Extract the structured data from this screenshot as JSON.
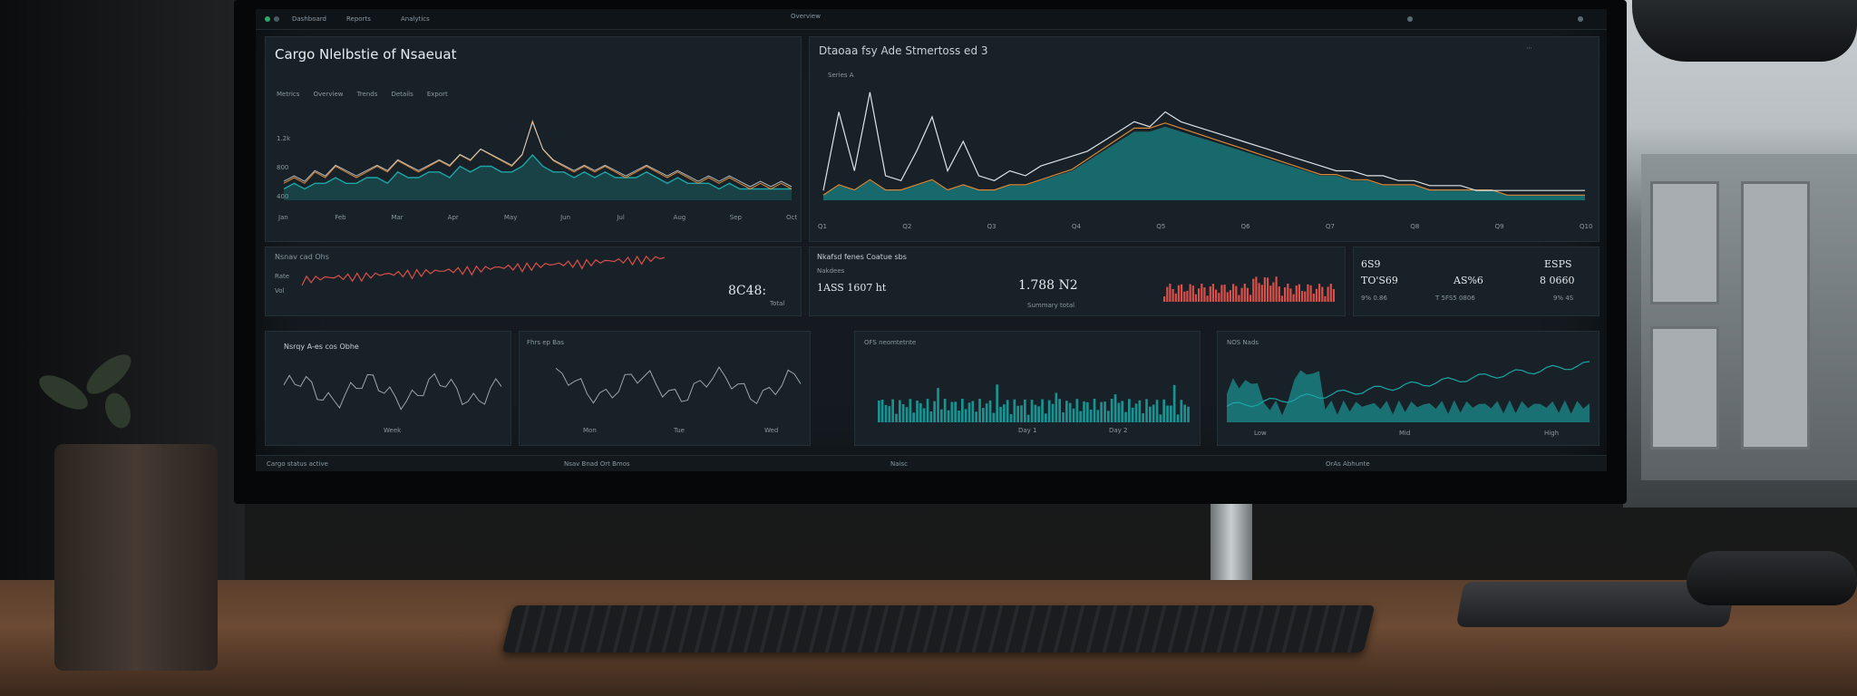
{
  "topbar": {
    "items": [
      "Dashboard",
      "Reports",
      "Analytics"
    ],
    "center": "Overview"
  },
  "panels": {
    "left_chart": {
      "title": "Cargo Nlelbstie of Nsaeuat",
      "tabs": [
        "Metrics",
        "Overview",
        "Trends",
        "Details",
        "Export"
      ],
      "axis": [
        "1.2k",
        "800",
        "400"
      ],
      "xlabels": [
        "Jan",
        "Feb",
        "Mar",
        "Apr",
        "May",
        "Jun",
        "Jul",
        "Aug",
        "Sep",
        "Oct"
      ]
    },
    "right_chart": {
      "title": "Dtaoaa fsy Ade Stmertoss ed 3",
      "sub": "Series A",
      "xlabels": [
        "Q1",
        "Q2",
        "Q3",
        "Q4",
        "Q5",
        "Q6",
        "Q7",
        "Q8",
        "Q9",
        "Q10"
      ]
    },
    "mid_left": {
      "title": "Nsnav cad Ohs",
      "axis": [
        "Rate",
        "Vol"
      ],
      "value": "8C48:",
      "sub": "Total"
    },
    "mid_center": {
      "title": "Nkafsd fenes Coatue sbs",
      "sub": "Nakdees",
      "value_left": "1ASS 1607 ht",
      "value_right": "1.788  N2",
      "foot": "Summary total"
    },
    "mid_kpis": {
      "items": [
        {
          "value": "6S9",
          "value2": "TO'S69",
          "label": "9%  0.86"
        },
        {
          "value": "",
          "value2": "AS%6",
          "label": "T 5FS5 0806"
        },
        {
          "value": "ESPS",
          "value2": "8 0660",
          "label": "9% 4S"
        }
      ]
    },
    "bottom_1": {
      "title": "Nsrqy A-es cos Obhe",
      "label": "Week"
    },
    "bottom_2": {
      "title": "Fhrs ep Bas",
      "labels": [
        "Mon",
        "Tue",
        "Wed"
      ]
    },
    "bottom_3": {
      "title": "OFS neomtetnte",
      "labels": [
        "Day 1",
        "Day 2"
      ]
    },
    "bottom_4": {
      "title": "NOS Nads",
      "labels": [
        "Low",
        "Mid",
        "High"
      ]
    }
  },
  "footer": {
    "left": "Cargo status active",
    "mid": "Nsav Bnad Ort Bmos",
    "right": "Naisc",
    "far": "OrAs Abhunte"
  },
  "colors": {
    "teal": "#1aa6a6",
    "orange": "#d98a3a",
    "red": "#d9504a",
    "white_line": "#dde3e6"
  },
  "chart_data": [
    {
      "type": "line",
      "series": [
        {
          "values": [
            3,
            4,
            3,
            5,
            4,
            6,
            5,
            4,
            5,
            6,
            5,
            7,
            6,
            5,
            6,
            7,
            6,
            8,
            7,
            9,
            8,
            7,
            6,
            8,
            14,
            9,
            7,
            6,
            5,
            6,
            5,
            6,
            5,
            4,
            5,
            6,
            5,
            4,
            5,
            4,
            3,
            4,
            3,
            4,
            3,
            2,
            3,
            2,
            3,
            2
          ]
        },
        {
          "values": [
            2,
            3,
            2,
            3,
            3,
            4,
            3,
            3,
            4,
            4,
            3,
            5,
            4,
            4,
            5,
            5,
            4,
            6,
            5,
            6,
            6,
            5,
            5,
            6,
            8,
            6,
            5,
            5,
            4,
            5,
            4,
            5,
            4,
            4,
            4,
            5,
            4,
            3,
            4,
            3,
            3,
            3,
            2,
            3,
            2,
            2,
            2,
            2,
            2,
            2
          ]
        }
      ]
    },
    {
      "type": "area",
      "series": [
        {
          "values": [
            2,
            18,
            6,
            22,
            5,
            4,
            10,
            17,
            6,
            12,
            5,
            4,
            6,
            5,
            7,
            8,
            9,
            10,
            12,
            14,
            16,
            15,
            18,
            16,
            15,
            14,
            13,
            12,
            11,
            10,
            9,
            8,
            7,
            6,
            6,
            5,
            5,
            4,
            4,
            3,
            3,
            3,
            2,
            2,
            2,
            2,
            2,
            2,
            2,
            2
          ]
        },
        {
          "values": [
            1,
            3,
            2,
            4,
            2,
            2,
            3,
            4,
            2,
            3,
            2,
            2,
            3,
            3,
            4,
            5,
            6,
            8,
            10,
            12,
            14,
            14,
            15,
            14,
            13,
            12,
            11,
            10,
            9,
            8,
            7,
            6,
            5,
            5,
            4,
            4,
            3,
            3,
            3,
            2,
            2,
            2,
            2,
            2,
            1,
            1,
            1,
            1,
            1,
            1
          ]
        }
      ]
    }
  ]
}
